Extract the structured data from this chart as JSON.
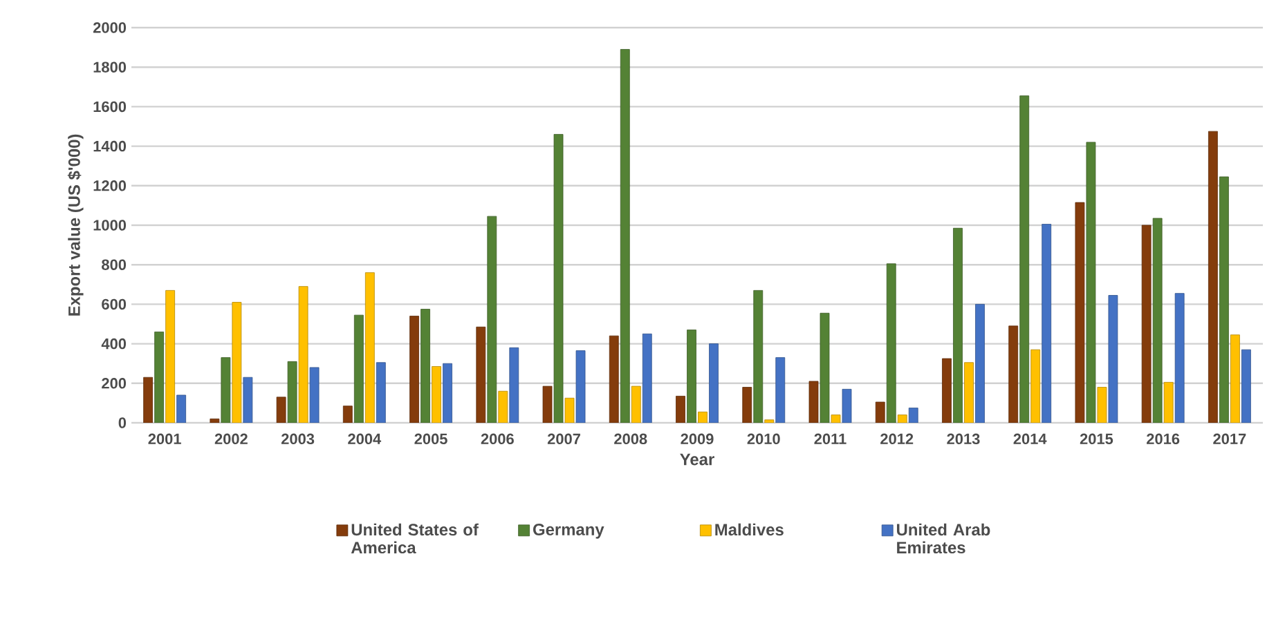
{
  "chart_data": {
    "type": "bar",
    "xlabel": "Year",
    "ylabel": "Export value (US $'000)",
    "categories": [
      "2001",
      "2002",
      "2003",
      "2004",
      "2005",
      "2006",
      "2007",
      "2008",
      "2009",
      "2010",
      "2011",
      "2012",
      "2013",
      "2014",
      "2015",
      "2016",
      "2017"
    ],
    "series": [
      {
        "name": "United States of America",
        "color": "#843c0c",
        "values": [
          230,
          20,
          130,
          85,
          540,
          485,
          185,
          440,
          135,
          180,
          210,
          105,
          325,
          490,
          1115,
          1000,
          1475
        ]
      },
      {
        "name": "Germany",
        "color": "#548235",
        "values": [
          460,
          330,
          310,
          545,
          575,
          1045,
          1460,
          1890,
          470,
          670,
          555,
          805,
          985,
          1655,
          1420,
          1035,
          1245
        ]
      },
      {
        "name": "Maldives",
        "color": "#ffc000",
        "values": [
          670,
          610,
          690,
          760,
          285,
          160,
          125,
          185,
          55,
          15,
          40,
          40,
          305,
          370,
          180,
          205,
          445
        ]
      },
      {
        "name": "United Arab Emirates",
        "color": "#4472c4",
        "values": [
          140,
          230,
          280,
          305,
          300,
          380,
          365,
          450,
          400,
          330,
          170,
          75,
          600,
          1005,
          645,
          655,
          370
        ]
      }
    ],
    "ylim": [
      0,
      2000
    ],
    "yticks": [
      0,
      200,
      400,
      600,
      800,
      1000,
      1200,
      1400,
      1600,
      1800,
      2000
    ],
    "grid": "y",
    "legend": "bottom"
  }
}
